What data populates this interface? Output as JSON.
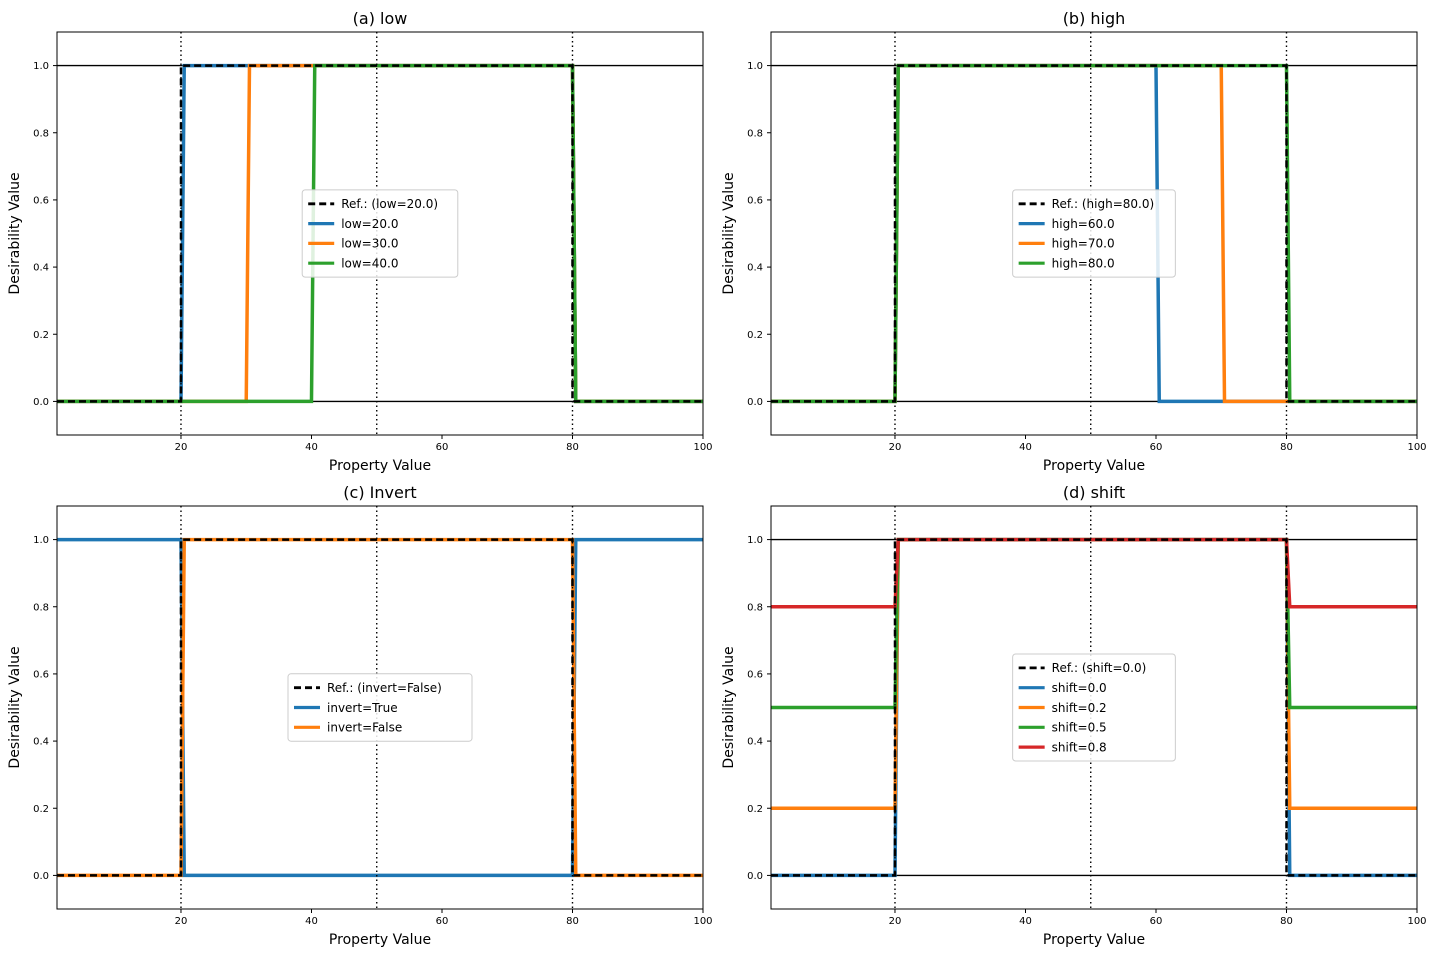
{
  "chart_data": [
    {
      "type": "line",
      "title": "(a) low",
      "xlabel": "Property Value",
      "ylabel": "Desirability Value",
      "xlim": [
        1,
        100
      ],
      "ylim": [
        -0.1,
        1.1
      ],
      "xticks": [
        20,
        40,
        60,
        80,
        100
      ],
      "yticks": [
        0.0,
        0.2,
        0.4,
        0.6,
        0.8,
        1.0
      ],
      "vlines": [
        20,
        50,
        80
      ],
      "hlines": [
        0,
        1
      ],
      "legend_position": "center",
      "reference": {
        "name": "Ref.: (low=20.0)",
        "x": [
          1,
          20,
          20,
          80,
          80,
          100
        ],
        "y": [
          0,
          0,
          1,
          1,
          0,
          0
        ]
      },
      "series": [
        {
          "name": "low=20.0",
          "color": "#1f77b4",
          "x": [
            1,
            20,
            20.5,
            80,
            80.5,
            100
          ],
          "y": [
            0,
            0,
            1,
            1,
            0,
            0
          ]
        },
        {
          "name": "low=30.0",
          "color": "#ff7f0e",
          "x": [
            1,
            30,
            30.5,
            80,
            80.5,
            100
          ],
          "y": [
            0,
            0,
            1,
            1,
            0,
            0
          ]
        },
        {
          "name": "low=40.0",
          "color": "#2ca02c",
          "x": [
            1,
            40,
            40.5,
            80,
            80.5,
            100
          ],
          "y": [
            0,
            0,
            1,
            1,
            0,
            0
          ]
        }
      ]
    },
    {
      "type": "line",
      "title": "(b) high",
      "xlabel": "Property Value",
      "ylabel": "Desirability Value",
      "xlim": [
        1,
        100
      ],
      "ylim": [
        -0.1,
        1.1
      ],
      "xticks": [
        20,
        40,
        60,
        80,
        100
      ],
      "yticks": [
        0.0,
        0.2,
        0.4,
        0.6,
        0.8,
        1.0
      ],
      "vlines": [
        20,
        50,
        80
      ],
      "hlines": [
        0,
        1
      ],
      "legend_position": "center",
      "reference": {
        "name": "Ref.: (high=80.0)",
        "x": [
          1,
          20,
          20,
          80,
          80,
          100
        ],
        "y": [
          0,
          0,
          1,
          1,
          0,
          0
        ]
      },
      "series": [
        {
          "name": "high=60.0",
          "color": "#1f77b4",
          "x": [
            1,
            20,
            20.5,
            60,
            60.5,
            100
          ],
          "y": [
            0,
            0,
            1,
            1,
            0,
            0
          ]
        },
        {
          "name": "high=70.0",
          "color": "#ff7f0e",
          "x": [
            1,
            20,
            20.5,
            70,
            70.5,
            100
          ],
          "y": [
            0,
            0,
            1,
            1,
            0,
            0
          ]
        },
        {
          "name": "high=80.0",
          "color": "#2ca02c",
          "x": [
            1,
            20,
            20.5,
            80,
            80.5,
            100
          ],
          "y": [
            0,
            0,
            1,
            1,
            0,
            0
          ]
        }
      ]
    },
    {
      "type": "line",
      "title": "(c) Invert",
      "xlabel": "Property Value",
      "ylabel": "Desirability Value",
      "xlim": [
        1,
        100
      ],
      "ylim": [
        -0.1,
        1.1
      ],
      "xticks": [
        20,
        40,
        60,
        80,
        100
      ],
      "yticks": [
        0.0,
        0.2,
        0.4,
        0.6,
        0.8,
        1.0
      ],
      "vlines": [
        20,
        50,
        80
      ],
      "hlines": [
        0,
        1
      ],
      "legend_position": "center",
      "reference": {
        "name": "Ref.: (invert=False)",
        "x": [
          1,
          20,
          20,
          80,
          80,
          100
        ],
        "y": [
          0,
          0,
          1,
          1,
          0,
          0
        ]
      },
      "series": [
        {
          "name": "invert=True",
          "color": "#1f77b4",
          "x": [
            1,
            20,
            20.5,
            80,
            80.5,
            100
          ],
          "y": [
            1,
            1,
            0,
            0,
            1,
            1
          ]
        },
        {
          "name": "invert=False",
          "color": "#ff7f0e",
          "x": [
            1,
            20,
            20.5,
            80,
            80.5,
            100
          ],
          "y": [
            0,
            0,
            1,
            1,
            0,
            0
          ]
        }
      ]
    },
    {
      "type": "line",
      "title": "(d) shift",
      "xlabel": "Property Value",
      "ylabel": "Desirability Value",
      "xlim": [
        1,
        100
      ],
      "ylim": [
        -0.1,
        1.1
      ],
      "xticks": [
        20,
        40,
        60,
        80,
        100
      ],
      "yticks": [
        0.0,
        0.2,
        0.4,
        0.6,
        0.8,
        1.0
      ],
      "vlines": [
        20,
        50,
        80
      ],
      "hlines": [
        0,
        1
      ],
      "legend_position": "center",
      "reference": {
        "name": "Ref.: (shift=0.0)",
        "x": [
          1,
          20,
          20,
          80,
          80,
          100
        ],
        "y": [
          0,
          0,
          1,
          1,
          0,
          0
        ]
      },
      "series": [
        {
          "name": "shift=0.0",
          "color": "#1f77b4",
          "x": [
            1,
            20,
            20.5,
            80,
            80.5,
            100
          ],
          "y": [
            0,
            0,
            1,
            1,
            0,
            0
          ]
        },
        {
          "name": "shift=0.2",
          "color": "#ff7f0e",
          "x": [
            1,
            20,
            20.5,
            80,
            80.5,
            100
          ],
          "y": [
            0.2,
            0.2,
            1,
            1,
            0.2,
            0.2
          ]
        },
        {
          "name": "shift=0.5",
          "color": "#2ca02c",
          "x": [
            1,
            20,
            20.5,
            80,
            80.5,
            100
          ],
          "y": [
            0.5,
            0.5,
            1,
            1,
            0.5,
            0.5
          ]
        },
        {
          "name": "shift=0.8",
          "color": "#d62728",
          "x": [
            1,
            20,
            20.5,
            80,
            80.5,
            100
          ],
          "y": [
            0.8,
            0.8,
            1,
            1,
            0.8,
            0.8
          ]
        }
      ]
    }
  ]
}
